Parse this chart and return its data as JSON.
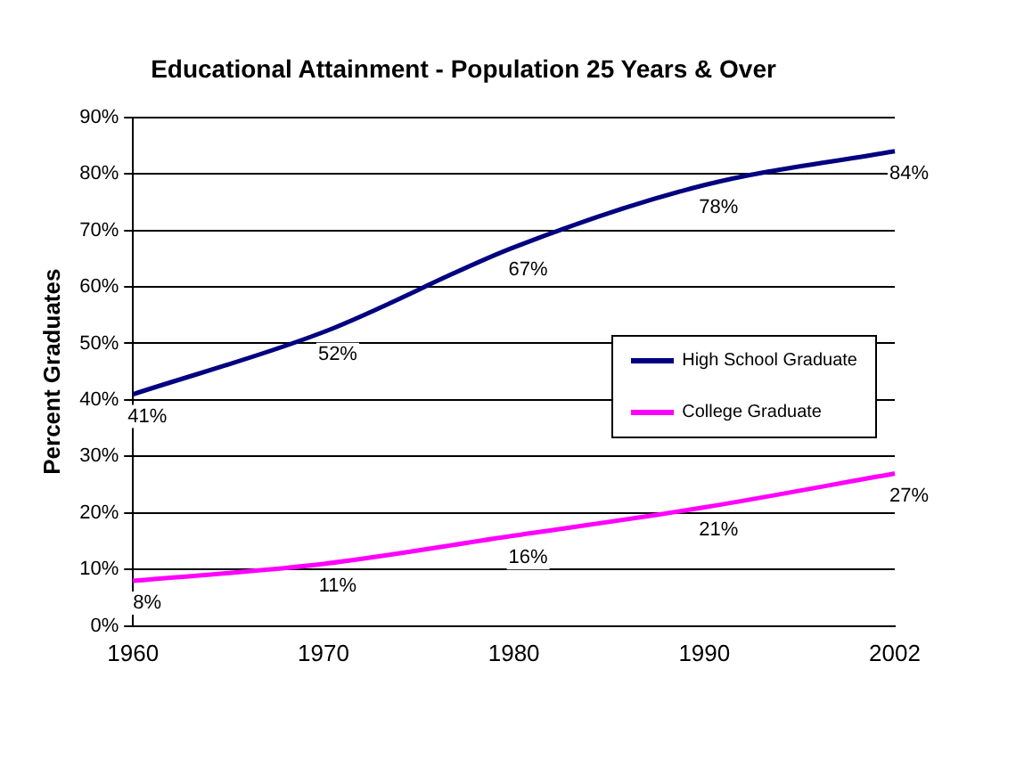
{
  "chart_data": {
    "type": "line",
    "title": "Educational Attainment - Population 25 Years & Over",
    "ylabel": "Percent Graduates",
    "categories": [
      "1960",
      "1970",
      "1980",
      "1990",
      "2002"
    ],
    "series": [
      {
        "name": "High School Graduate",
        "color": "#000080",
        "values": [
          41,
          52,
          67,
          78,
          84
        ],
        "value_labels": [
          "41%",
          "52%",
          "67%",
          "78%",
          "84%"
        ]
      },
      {
        "name": "College Graduate",
        "color": "#ff00ff",
        "values": [
          8,
          11,
          16,
          21,
          27
        ],
        "value_labels": [
          "8%",
          "11%",
          "16%",
          "21%",
          "27%"
        ]
      }
    ],
    "ylim": [
      0,
      90
    ],
    "yticks": [
      {
        "value": 0,
        "label": "0%"
      },
      {
        "value": 10,
        "label": "10%"
      },
      {
        "value": 20,
        "label": "20%"
      },
      {
        "value": 30,
        "label": "30%"
      },
      {
        "value": 40,
        "label": "40%"
      },
      {
        "value": 50,
        "label": "50%"
      },
      {
        "value": 60,
        "label": "60%"
      },
      {
        "value": 70,
        "label": "70%"
      },
      {
        "value": 80,
        "label": "80%"
      },
      {
        "value": 90,
        "label": "90%"
      }
    ],
    "grid": "y",
    "legend": "right",
    "marker": "none",
    "line_style": "solid"
  }
}
